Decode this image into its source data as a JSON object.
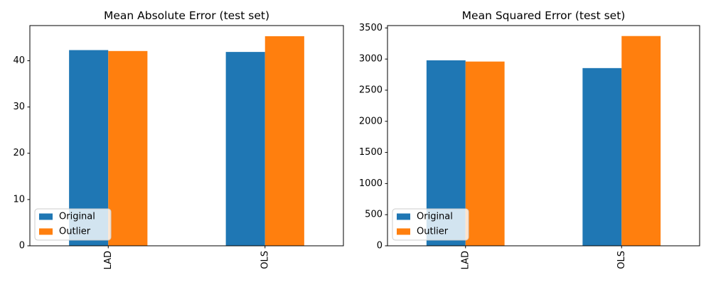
{
  "figure": {
    "background": "#ffffff",
    "text_color": "#000000",
    "axis_color": "#000000",
    "legend_border_color": "#cccccc"
  },
  "chart_data": [
    {
      "type": "bar",
      "title": "Mean Absolute Error (test set)",
      "categories": [
        "LAD",
        "OLS"
      ],
      "series": [
        {
          "name": "Original",
          "color": "#1f77b4",
          "values": [
            42.3,
            41.9
          ]
        },
        {
          "name": "Outlier",
          "color": "#ff7f0e",
          "values": [
            42.1,
            45.3
          ]
        }
      ],
      "xlabel": "",
      "ylabel": "",
      "yticks": [
        0,
        10,
        20,
        30,
        40
      ],
      "ylim": [
        0,
        47.6
      ],
      "grid": false,
      "legend_position": "lower left",
      "bar_group_width_fraction": 0.5,
      "xtick_rotation_deg": 90
    },
    {
      "type": "bar",
      "title": "Mean Squared Error (test set)",
      "categories": [
        "LAD",
        "OLS"
      ],
      "series": [
        {
          "name": "Original",
          "color": "#1f77b4",
          "values": [
            2980,
            2855
          ]
        },
        {
          "name": "Outlier",
          "color": "#ff7f0e",
          "values": [
            2960,
            3370
          ]
        }
      ],
      "xlabel": "",
      "ylabel": "",
      "yticks": [
        0,
        500,
        1000,
        1500,
        2000,
        2500,
        3000,
        3500
      ],
      "ylim": [
        0,
        3538
      ],
      "grid": false,
      "legend_position": "lower left",
      "bar_group_width_fraction": 0.5,
      "xtick_rotation_deg": 90
    }
  ]
}
